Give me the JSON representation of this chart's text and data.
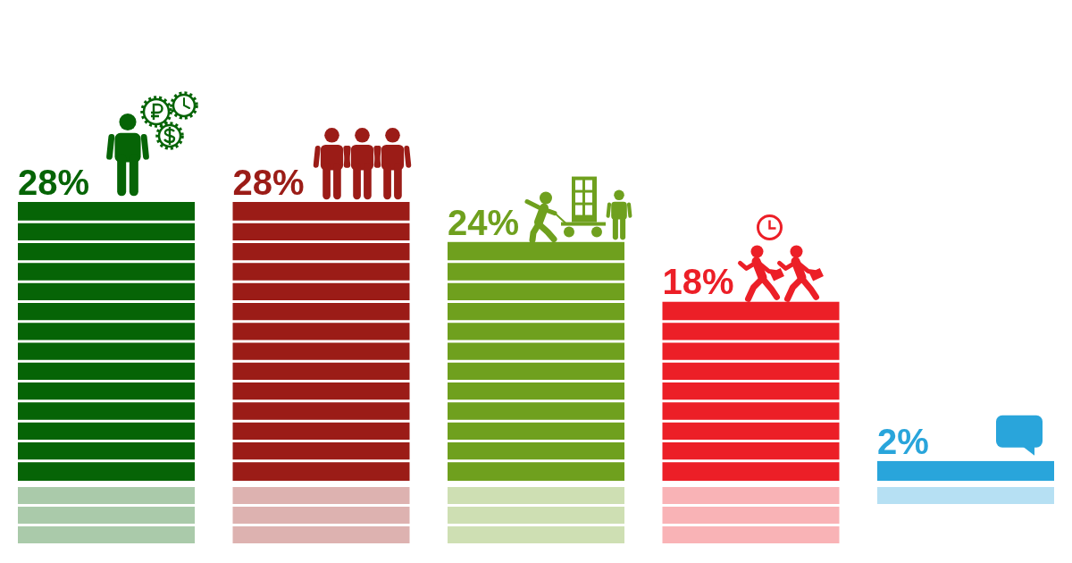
{
  "chart_data": {
    "type": "bar",
    "categories": [
      null,
      null,
      null,
      null,
      null
    ],
    "values": [
      28,
      28,
      24,
      18,
      2
    ],
    "colors": [
      "#066406",
      "#9b1c17",
      "#6fa01e",
      "#ec1f27",
      "#29a5db"
    ],
    "value_labels": [
      "28%",
      "28%",
      "24%",
      "18%",
      "2%"
    ]
  }
}
